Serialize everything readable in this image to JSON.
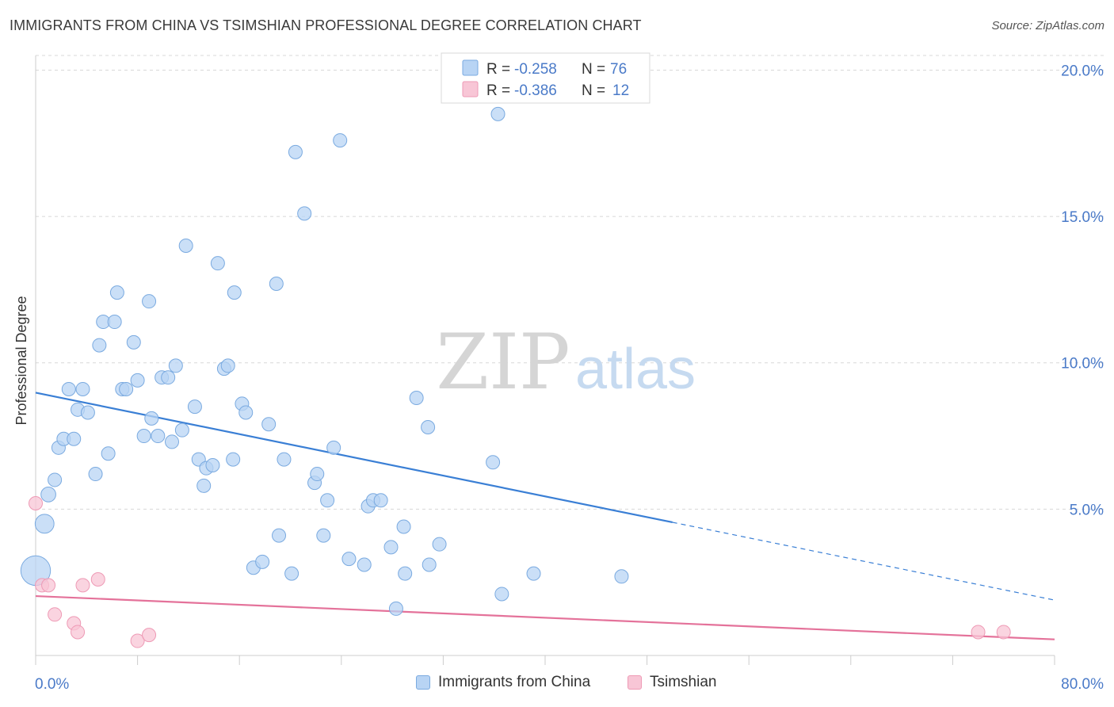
{
  "title": "IMMIGRANTS FROM CHINA VS TSIMSHIAN PROFESSIONAL DEGREE CORRELATION CHART",
  "source": "Source: ZipAtlas.com",
  "watermark": {
    "zip": "ZIP",
    "atlas": "atlas"
  },
  "colors": {
    "blue_fill": "#b8d4f4",
    "blue_stroke": "#7aaae0",
    "blue_line": "#3a7fd5",
    "pink_fill": "#f8c6d6",
    "pink_stroke": "#ee9ab5",
    "pink_line": "#e4729a",
    "tick_label": "#4a7ac8",
    "grid": "#d8d8d8"
  },
  "legend_top": [
    {
      "r_label": "R = ",
      "r_value": "-0.258",
      "n_label": "N = ",
      "n_value": "76",
      "color": "blue"
    },
    {
      "r_label": "R = ",
      "r_value": "-0.386",
      "n_label": "N = ",
      "n_value": "12",
      "color": "pink"
    }
  ],
  "legend_bottom": [
    {
      "label": "Immigrants from China",
      "color": "blue"
    },
    {
      "label": "Tsimshian",
      "color": "pink"
    }
  ],
  "chart_data": {
    "type": "scatter",
    "title": "IMMIGRANTS FROM CHINA VS TSIMSHIAN PROFESSIONAL DEGREE CORRELATION CHART",
    "xlabel": "",
    "ylabel": "Professional Degree",
    "xlim": [
      0,
      80
    ],
    "ylim": [
      0,
      20.5
    ],
    "x_tick_labels": [
      "0.0%",
      "80.0%"
    ],
    "y_ticks": [
      5,
      10,
      15,
      20
    ],
    "y_tick_labels": [
      "5.0%",
      "10.0%",
      "15.0%",
      "20.0%"
    ],
    "grid": true,
    "legend_position": "top-center",
    "series": [
      {
        "name": "Immigrants from China",
        "color": "blue",
        "trend": {
          "x0": 0,
          "y0": 8.98,
          "x1": 50,
          "y1": 4.55,
          "dashed_to_x": 80
        },
        "points": [
          [
            0.0,
            2.9,
            2.2
          ],
          [
            0.7,
            4.5,
            1.4
          ],
          [
            1.0,
            5.5,
            1.1
          ],
          [
            1.5,
            6.0,
            1.0
          ],
          [
            1.8,
            7.1,
            1.0
          ],
          [
            2.2,
            7.4,
            1.0
          ],
          [
            2.6,
            9.1,
            1.0
          ],
          [
            3.0,
            7.4,
            1.0
          ],
          [
            3.3,
            8.4,
            1.0
          ],
          [
            3.7,
            9.1,
            1.0
          ],
          [
            4.1,
            8.3,
            1.0
          ],
          [
            4.7,
            6.2,
            1.0
          ],
          [
            5.0,
            10.6,
            1.0
          ],
          [
            5.3,
            11.4,
            1.0
          ],
          [
            5.7,
            6.9,
            1.0
          ],
          [
            6.2,
            11.4,
            1.0
          ],
          [
            6.4,
            12.4,
            1.0
          ],
          [
            6.8,
            9.1,
            1.0
          ],
          [
            7.1,
            9.1,
            1.0
          ],
          [
            7.7,
            10.7,
            1.0
          ],
          [
            8.0,
            9.4,
            1.0
          ],
          [
            8.5,
            7.5,
            1.0
          ],
          [
            8.9,
            12.1,
            1.0
          ],
          [
            9.1,
            8.1,
            1.0
          ],
          [
            9.6,
            7.5,
            1.0
          ],
          [
            9.9,
            9.5,
            1.0
          ],
          [
            10.4,
            9.5,
            1.0
          ],
          [
            10.7,
            7.3,
            1.0
          ],
          [
            11.0,
            9.9,
            1.0
          ],
          [
            11.5,
            7.7,
            1.0
          ],
          [
            11.8,
            14.0,
            1.0
          ],
          [
            12.5,
            8.5,
            1.0
          ],
          [
            12.8,
            6.7,
            1.0
          ],
          [
            13.2,
            5.8,
            1.0
          ],
          [
            13.4,
            6.4,
            1.0
          ],
          [
            13.9,
            6.5,
            1.0
          ],
          [
            14.3,
            13.4,
            1.0
          ],
          [
            14.8,
            9.8,
            1.0
          ],
          [
            15.1,
            9.9,
            1.0
          ],
          [
            15.5,
            6.7,
            1.0
          ],
          [
            15.6,
            12.4,
            1.0
          ],
          [
            16.2,
            8.6,
            1.0
          ],
          [
            16.5,
            8.3,
            1.0
          ],
          [
            17.1,
            3.0,
            1.0
          ],
          [
            17.8,
            3.2,
            1.0
          ],
          [
            18.3,
            7.9,
            1.0
          ],
          [
            18.9,
            12.7,
            1.0
          ],
          [
            19.1,
            4.1,
            1.0
          ],
          [
            19.5,
            6.7,
            1.0
          ],
          [
            20.1,
            2.8,
            1.0
          ],
          [
            20.4,
            17.2,
            1.0
          ],
          [
            21.1,
            15.1,
            1.0
          ],
          [
            21.9,
            5.9,
            1.0
          ],
          [
            22.1,
            6.2,
            1.0
          ],
          [
            22.6,
            4.1,
            1.0
          ],
          [
            22.9,
            5.3,
            1.0
          ],
          [
            23.4,
            7.1,
            1.0
          ],
          [
            23.9,
            17.6,
            1.0
          ],
          [
            24.6,
            3.3,
            1.0
          ],
          [
            25.8,
            3.1,
            1.0
          ],
          [
            26.1,
            5.1,
            1.0
          ],
          [
            26.5,
            5.3,
            1.0
          ],
          [
            27.1,
            5.3,
            1.0
          ],
          [
            27.9,
            3.7,
            1.0
          ],
          [
            28.3,
            1.6,
            1.0
          ],
          [
            28.9,
            4.4,
            1.0
          ],
          [
            29.0,
            2.8,
            1.0
          ],
          [
            29.9,
            8.8,
            1.0
          ],
          [
            30.8,
            7.8,
            1.0
          ],
          [
            30.9,
            3.1,
            1.0
          ],
          [
            31.7,
            3.8,
            1.0
          ],
          [
            35.9,
            6.6,
            1.0
          ],
          [
            36.3,
            18.5,
            1.0
          ],
          [
            36.6,
            2.1,
            1.0
          ],
          [
            39.1,
            2.8,
            1.0
          ],
          [
            46.0,
            2.7,
            1.0
          ]
        ]
      },
      {
        "name": "Tsimshian",
        "color": "pink",
        "trend": {
          "x0": 0,
          "y0": 2.03,
          "x1": 80,
          "y1": 0.55
        },
        "points": [
          [
            0.0,
            5.2,
            1.0
          ],
          [
            0.5,
            2.4,
            1.0
          ],
          [
            1.0,
            2.4,
            1.0
          ],
          [
            1.5,
            1.4,
            1.0
          ],
          [
            3.0,
            1.1,
            1.0
          ],
          [
            3.3,
            0.8,
            1.0
          ],
          [
            3.7,
            2.4,
            1.0
          ],
          [
            4.9,
            2.6,
            1.0
          ],
          [
            8.0,
            0.5,
            1.0
          ],
          [
            8.9,
            0.7,
            1.0
          ],
          [
            74.0,
            0.8,
            1.0
          ],
          [
            76.0,
            0.8,
            1.0
          ]
        ]
      }
    ]
  }
}
